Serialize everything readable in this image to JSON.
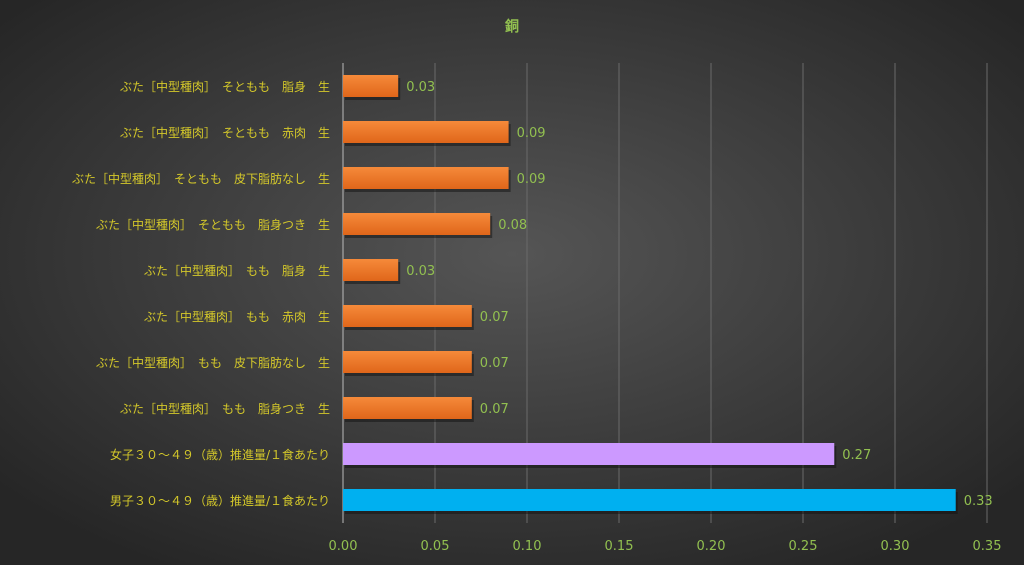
{
  "chart_data": {
    "type": "bar",
    "orientation": "horizontal",
    "title": "銅",
    "xlabel": "",
    "ylabel": "",
    "xlim": [
      0,
      0.35
    ],
    "x_ticks": [
      "0.00",
      "0.05",
      "0.10",
      "0.15",
      "0.20",
      "0.25",
      "0.30",
      "0.35"
    ],
    "grid": true,
    "categories": [
      "ぶた［中型種肉］　そともも　脂身　生",
      "ぶた［中型種肉］　そともも　赤肉　生",
      "ぶた［中型種肉］　そともも　皮下脂肪なし　生",
      "ぶた［中型種肉］　そともも　脂身つき　生",
      "ぶた［中型種肉］　もも　脂身　生",
      "ぶた［中型種肉］　もも　赤肉　生",
      "ぶた［中型種肉］　もも　皮下脂肪なし　生",
      "ぶた［中型種肉］　もも　脂身つき　生",
      "女子３０～４９（歳）推進量/１食あたり",
      "男子３０～４９（歳）推進量/１食あたり"
    ],
    "values": [
      0.03,
      0.09,
      0.09,
      0.08,
      0.03,
      0.07,
      0.07,
      0.07,
      0.267,
      0.333
    ],
    "value_labels": [
      "0.03",
      "0.09",
      "0.09",
      "0.08",
      "0.03",
      "0.07",
      "0.07",
      "0.07",
      "0.27",
      "0.33"
    ],
    "bar_colors": [
      "#f07a2a",
      "#f07a2a",
      "#f07a2a",
      "#f07a2a",
      "#f07a2a",
      "#f07a2a",
      "#f07a2a",
      "#f07a2a",
      "#cc99ff",
      "#00b0f0"
    ]
  }
}
